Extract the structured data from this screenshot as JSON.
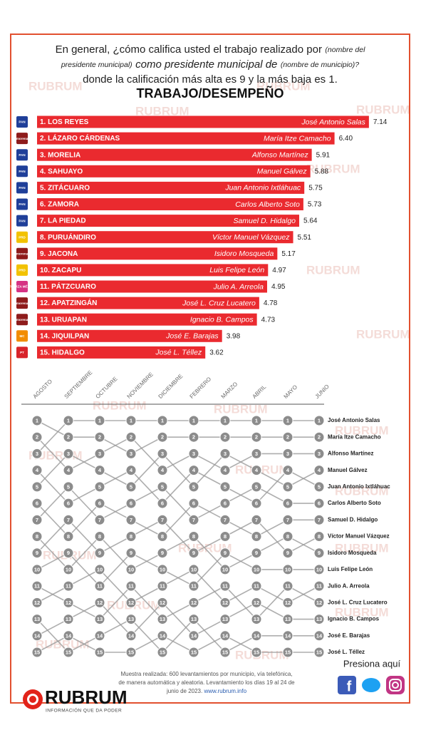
{
  "header": {
    "question_1": "En general, ¿cómo califica usted el trabajo realizado por",
    "question_2": "(nombre del",
    "question_3": "presidente municipal)",
    "question_4": "como presidente municipal de",
    "question_5": "(nombre de municipio)?",
    "question_6": "donde la calificación más alta es 9 y la más baja es 1."
  },
  "watermark": "RUBRUM",
  "chart_data": [
    {
      "type": "hbar",
      "title": "TRABAJO/DESEMPEÑO",
      "categories": [
        "1. LOS REYES",
        "2. LÁZARO CÁRDENAS",
        "3. MORELIA",
        "4. SAHUAYO",
        "5. ZITÁCUARO",
        "6. ZAMORA",
        "7. LA PIEDAD",
        "8. PURUÁNDIRO",
        "9. JACONA",
        "10. ZACAPU",
        "11. PÁTZCUARO",
        "12. APATZINGÁN",
        "13. URUAPAN",
        "14. JIQUILPAN",
        "15. HIDALGO"
      ],
      "mayors": [
        "José Antonio Salas",
        "María Itze Camacho",
        "Alfonso Martínez",
        "Manuel Gálvez",
        "Juan Antonio Ixtláhuac",
        "Carlos Alberto Soto",
        "Samuel D. Hidalgo",
        "Víctor Manuel Vázquez",
        "Isidoro Mosqueda",
        "Luis Felipe León",
        "Julio A. Arreola",
        "José L. Cruz Lucatero",
        "Ignacio B. Campos",
        "José E. Barajas",
        "José L. Téllez"
      ],
      "logos": [
        "PAN",
        "morena",
        "PAN",
        "PAN",
        "PAN",
        "PAN",
        "PAN",
        "PRD",
        "morena",
        "PRD",
        "FUERZA MÉXICO",
        "morena",
        "morena",
        "MC",
        "PT"
      ],
      "logo_colors": [
        "#1f3f99",
        "#8e1b1b",
        "#1f3f99",
        "#1f3f99",
        "#1f3f99",
        "#1f3f99",
        "#1f3f99",
        "#f2c200",
        "#8e1b1b",
        "#f2c200",
        "#d63384",
        "#8e1b1b",
        "#8e1b1b",
        "#f28c00",
        "#d8232a"
      ],
      "values": [
        7.14,
        6.4,
        5.91,
        5.88,
        5.75,
        5.73,
        5.64,
        5.51,
        5.17,
        4.97,
        4.95,
        4.78,
        4.73,
        3.98,
        3.62
      ],
      "value_labels": [
        "7.14",
        "6.40",
        "5.91",
        "5.88",
        "5.75",
        "5.73",
        "5.64",
        "5.51",
        "5.17",
        "4.97",
        "4.95",
        "4.78",
        "4.73",
        "3.98",
        "3.62"
      ],
      "color": "#ea2a2f",
      "xlim": [
        0,
        8
      ]
    },
    {
      "type": "bump",
      "categories": [
        "AGOSTO",
        "SEPTIEMBRE",
        "OCTUBRE",
        "NOVIEMBRE",
        "DICIEMBRE",
        "FEBRERO",
        "MARZO",
        "ABRIL",
        "MAYO",
        "JUNIO"
      ],
      "ylim": [
        1,
        15
      ],
      "y_inverted": true,
      "yticks": [
        1,
        2,
        3,
        4,
        5,
        6,
        7,
        8,
        9,
        10,
        11,
        12,
        13,
        14,
        15
      ],
      "color": "#9a9a9a",
      "series": [
        {
          "name": "José Antonio Salas",
          "values": [
            3,
            1,
            1,
            1,
            1,
            1,
            1,
            1,
            1,
            1
          ]
        },
        {
          "name": "María Itze Camacho",
          "values": [
            1,
            2,
            2,
            3,
            2,
            2,
            2,
            2,
            2,
            2
          ]
        },
        {
          "name": "Alfonso Martínez",
          "values": [
            2,
            4,
            3,
            2,
            4,
            3,
            4,
            3,
            3,
            3
          ]
        },
        {
          "name": "Manuel Gálvez",
          "values": [
            5,
            3,
            4,
            5,
            3,
            5,
            3,
            4,
            5,
            4
          ]
        },
        {
          "name": "Juan Antonio Ixtláhuac",
          "values": [
            4,
            6,
            5,
            4,
            6,
            4,
            5,
            6,
            4,
            5
          ]
        },
        {
          "name": "Carlos Alberto Soto",
          "values": [
            7,
            5,
            7,
            6,
            5,
            7,
            6,
            5,
            6,
            6
          ]
        },
        {
          "name": "Samuel D. Hidalgo",
          "values": [
            6,
            8,
            6,
            7,
            8,
            6,
            7,
            8,
            7,
            7
          ]
        },
        {
          "name": "Víctor Manuel Vázquez",
          "values": [
            9,
            7,
            9,
            8,
            7,
            9,
            8,
            7,
            9,
            8
          ]
        },
        {
          "name": "Isidoro Mosqueda",
          "values": [
            8,
            10,
            8,
            10,
            9,
            8,
            10,
            9,
            8,
            9
          ]
        },
        {
          "name": "Luis Felipe León",
          "values": [
            10,
            9,
            11,
            9,
            10,
            11,
            9,
            10,
            10,
            10
          ]
        },
        {
          "name": "Julio A. Arreola",
          "values": [
            12,
            11,
            10,
            12,
            11,
            10,
            12,
            11,
            12,
            11
          ]
        },
        {
          "name": "José L. Cruz Lucatero",
          "values": [
            11,
            12,
            13,
            11,
            13,
            12,
            11,
            13,
            11,
            12
          ]
        },
        {
          "name": "Ignacio B. Campos",
          "values": [
            14,
            13,
            12,
            14,
            12,
            14,
            13,
            12,
            13,
            13
          ]
        },
        {
          "name": "José E. Barajas",
          "values": [
            13,
            15,
            14,
            13,
            15,
            13,
            15,
            14,
            14,
            14
          ]
        },
        {
          "name": "José L. Téllez",
          "values": [
            15,
            14,
            15,
            15,
            14,
            15,
            14,
            15,
            15,
            15
          ]
        }
      ]
    }
  ],
  "footer": {
    "note_1": "Muestra realizada: 600 levantamientos por municipio, vía telefónica,",
    "note_2": "de manera automática y aleatoria. Levantamiento los días 19 al 24 de",
    "note_3": "junio de 2023.",
    "url": "www.rubrum.info",
    "cta": "Presiona aquí",
    "brand": "RUBRUM",
    "tagline": "INFORMACIÓN QUE DA PODER"
  }
}
